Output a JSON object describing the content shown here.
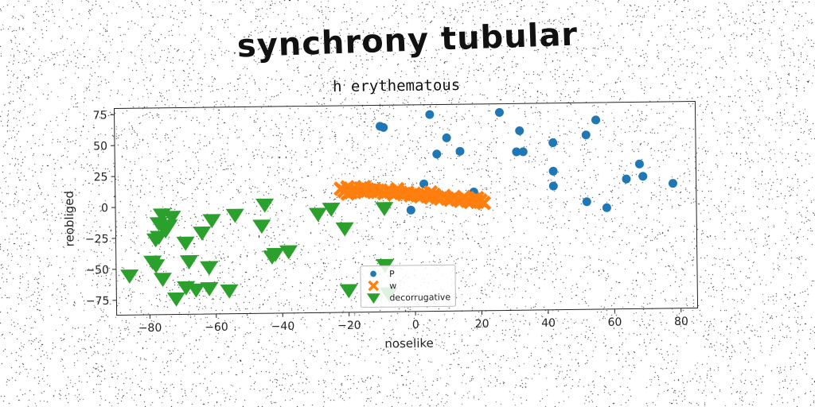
{
  "suptitle": "synchrony tubular",
  "chart_data": {
    "type": "scatter",
    "title": "h erythematous",
    "xlabel": "noselike",
    "ylabel": "reobliged",
    "xlim": [
      -90,
      85
    ],
    "ylim": [
      -87,
      80
    ],
    "xticks": [
      -80,
      -60,
      -40,
      -20,
      0,
      20,
      40,
      60,
      80
    ],
    "yticks": [
      -75,
      -50,
      -25,
      0,
      25,
      50,
      75
    ],
    "grid": false,
    "legend_placement": "lower center",
    "colors": {
      "P": "#1f77b4",
      "w": "#ff7f0e",
      "decorrugative": "#2ca02c"
    },
    "series": [
      {
        "name": "P",
        "marker": "circle",
        "points": [
          [
            -10,
            63
          ],
          [
            -9,
            62
          ],
          [
            5,
            72
          ],
          [
            26,
            73
          ],
          [
            55,
            66
          ],
          [
            10,
            53
          ],
          [
            32,
            58
          ],
          [
            52,
            54
          ],
          [
            42,
            48
          ],
          [
            7,
            40
          ],
          [
            14,
            42
          ],
          [
            31,
            41
          ],
          [
            33,
            41
          ],
          [
            68,
            30
          ],
          [
            42,
            25
          ],
          [
            64,
            18
          ],
          [
            69,
            20
          ],
          [
            78,
            14
          ],
          [
            42,
            13
          ],
          [
            3,
            16
          ],
          [
            52,
            0
          ],
          [
            58,
            -5
          ],
          [
            18,
            9
          ],
          [
            -1,
            -5
          ]
        ]
      },
      {
        "name": "w",
        "marker": "x",
        "points": [
          [
            -22,
            13
          ],
          [
            -21,
            11
          ],
          [
            -20,
            14
          ],
          [
            -19,
            10
          ],
          [
            -18,
            12
          ],
          [
            -17,
            11
          ],
          [
            -16,
            13
          ],
          [
            -15,
            10
          ],
          [
            -14,
            12
          ],
          [
            -13,
            11
          ],
          [
            -12,
            12
          ],
          [
            -11,
            10
          ],
          [
            -10,
            11
          ],
          [
            -9,
            9
          ],
          [
            -8,
            11
          ],
          [
            -7,
            10
          ],
          [
            -6,
            8
          ],
          [
            -5,
            10
          ],
          [
            -4,
            9
          ],
          [
            -3,
            8
          ],
          [
            -2,
            9
          ],
          [
            -1,
            7
          ],
          [
            0,
            8
          ],
          [
            1,
            7
          ],
          [
            2,
            6
          ],
          [
            3,
            8
          ],
          [
            4,
            6
          ],
          [
            5,
            5
          ],
          [
            6,
            7
          ],
          [
            7,
            5
          ],
          [
            8,
            4
          ],
          [
            9,
            6
          ],
          [
            10,
            4
          ],
          [
            11,
            3
          ],
          [
            12,
            5
          ],
          [
            13,
            3
          ],
          [
            14,
            2
          ],
          [
            15,
            4
          ],
          [
            16,
            2
          ],
          [
            17,
            1
          ],
          [
            18,
            3
          ],
          [
            19,
            1
          ],
          [
            20,
            2
          ],
          [
            21,
            0
          ],
          [
            -20,
            9
          ],
          [
            -15,
            14
          ],
          [
            -5,
            12
          ],
          [
            5,
            9
          ],
          [
            15,
            5
          ],
          [
            19,
            4
          ]
        ]
      },
      {
        "name": "decorrugative",
        "marker": "triangle_down",
        "points": [
          [
            -76,
            -6
          ],
          [
            -73,
            -8
          ],
          [
            -77,
            -13
          ],
          [
            -74,
            -15
          ],
          [
            -75,
            -19
          ],
          [
            -77,
            -24
          ],
          [
            -78,
            -26
          ],
          [
            -69,
            -29
          ],
          [
            -64,
            -21
          ],
          [
            -61,
            -11
          ],
          [
            -54,
            -7
          ],
          [
            -46,
            -16
          ],
          [
            -45,
            1
          ],
          [
            -43,
            -41
          ],
          [
            -42,
            -39
          ],
          [
            -38,
            -37
          ],
          [
            -29,
            -7
          ],
          [
            -25,
            -3
          ],
          [
            -21,
            -19
          ],
          [
            -9,
            -3
          ],
          [
            -79,
            -44
          ],
          [
            -78,
            -47
          ],
          [
            -68,
            -44
          ],
          [
            -62,
            -49
          ],
          [
            -86,
            -55
          ],
          [
            -76,
            -58
          ],
          [
            -69,
            -65
          ],
          [
            -66,
            -67
          ],
          [
            -62,
            -66
          ],
          [
            -56,
            -68
          ],
          [
            -72,
            -74
          ],
          [
            -20,
            -69
          ],
          [
            -9,
            -49
          ],
          [
            -8,
            -72
          ]
        ]
      }
    ]
  }
}
